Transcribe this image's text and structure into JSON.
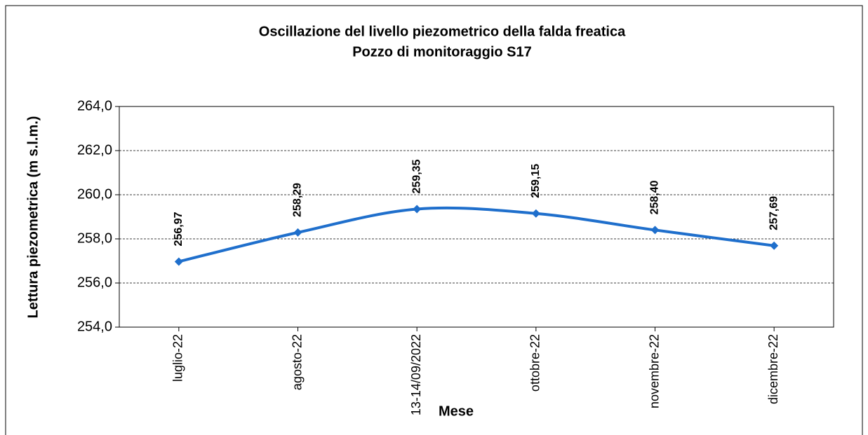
{
  "chart_data": {
    "type": "line",
    "title": "Oscillazione del livello piezometrico della falda freatica",
    "subtitle": "Pozzo di monitoraggio S17",
    "x_label": "Mese",
    "y_label": "Lettura piezometrica (m s.l.m.)",
    "categories": [
      "luglio-22",
      "agosto-22",
      "13-14/09/2022",
      "ottobre-22",
      "novembre-22",
      "dicembre-22"
    ],
    "series": [
      {
        "name": "S17",
        "color": "#1f6fcc",
        "values": [
          256.97,
          258.29,
          259.35,
          259.15,
          258.4,
          257.69
        ],
        "value_labels": [
          "256,97",
          "258,29",
          "259,35",
          "259,15",
          "258,40",
          "257,69"
        ]
      }
    ],
    "ylim": [
      254,
      264
    ],
    "yticks": [
      {
        "value": 254,
        "label": "254,0"
      },
      {
        "value": 256,
        "label": "256,0"
      },
      {
        "value": 258,
        "label": "258,0"
      },
      {
        "value": 260,
        "label": "260,0"
      },
      {
        "value": 262,
        "label": "262,0"
      },
      {
        "value": 264,
        "label": "264,0"
      }
    ],
    "grid": true,
    "smooth": true
  }
}
